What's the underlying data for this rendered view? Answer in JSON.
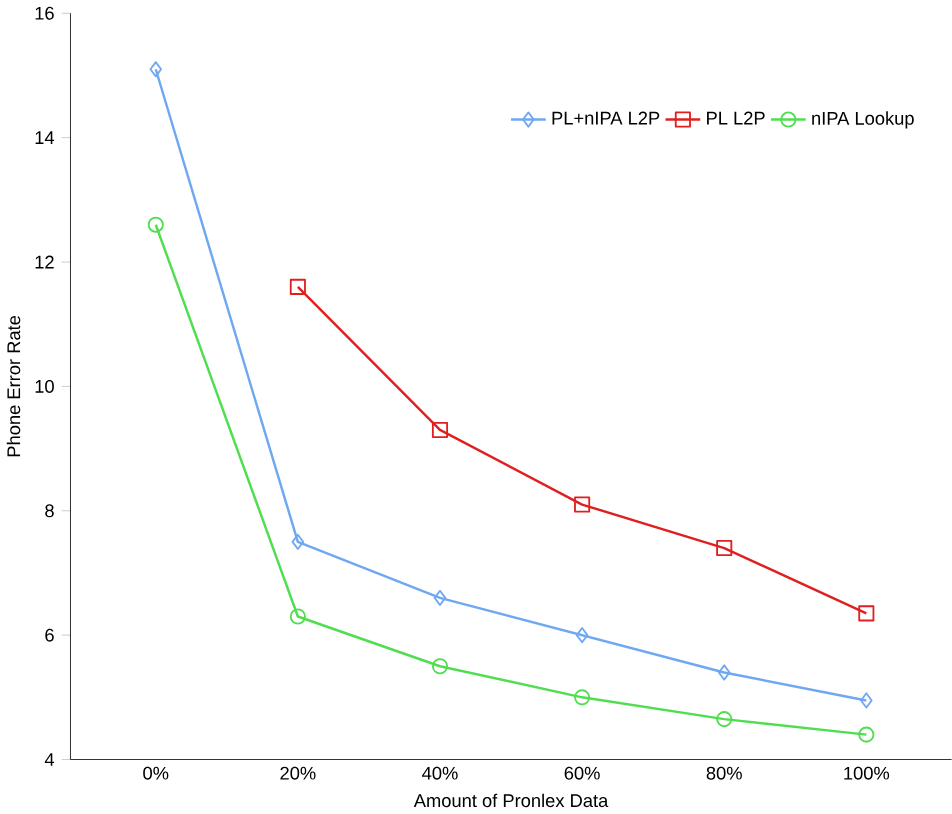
{
  "chart_data": {
    "type": "line",
    "xlabel": "Amount of Pronlex Data",
    "ylabel": "Phone Error Rate",
    "categories": [
      "0%",
      "20%",
      "40%",
      "60%",
      "80%",
      "100%"
    ],
    "series": [
      {
        "name": "PL+nIPA L2P",
        "color": "#6fa8f0",
        "marker": "diamond",
        "values": [
          15.1,
          7.5,
          6.6,
          6.0,
          5.4,
          4.95
        ]
      },
      {
        "name": "PL L2P",
        "color": "#e02020",
        "marker": "square",
        "values": [
          null,
          11.6,
          9.3,
          8.1,
          7.4,
          6.35
        ]
      },
      {
        "name": "nIPA Lookup",
        "color": "#50dd50",
        "marker": "circle",
        "values": [
          12.6,
          6.3,
          5.5,
          5.0,
          4.65,
          4.4
        ]
      }
    ],
    "ylim": [
      4,
      16
    ],
    "yticks": [
      4,
      6,
      8,
      10,
      12,
      14,
      16
    ],
    "grid": false,
    "legend": "top right",
    "line_style": "solid"
  }
}
